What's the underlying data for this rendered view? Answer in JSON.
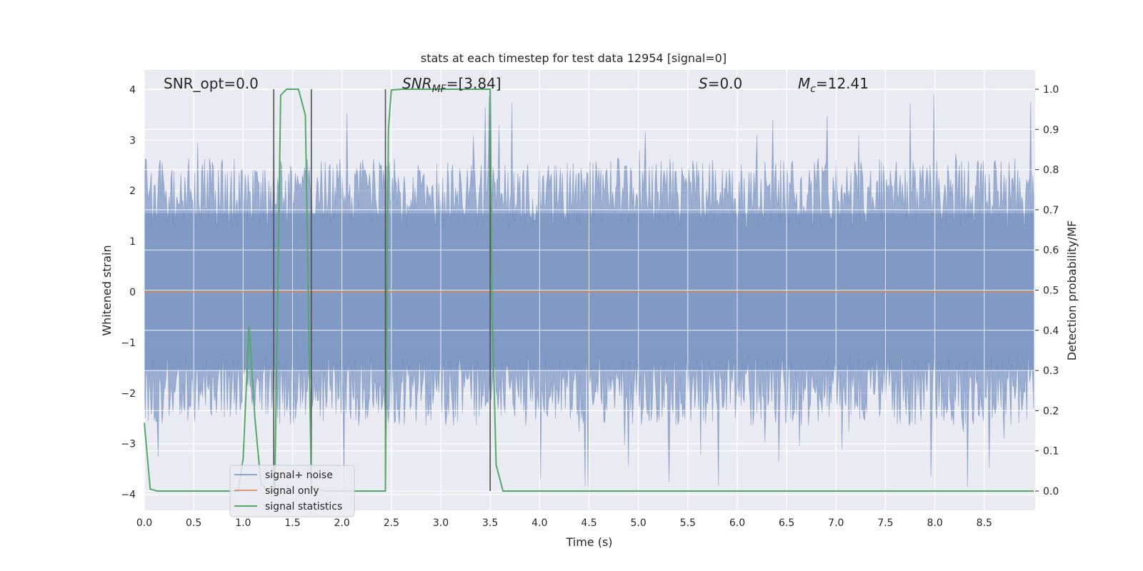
{
  "chart_data": {
    "type": "line",
    "title": "stats at each timestep for test data 12954 [signal=0]",
    "xlabel": "Time (s)",
    "ylabel": "Whitened strain",
    "y2label": "Detection probability/MF",
    "xlim": [
      0,
      9.0
    ],
    "ylim": [
      -4.3,
      4.4
    ],
    "y2lim": [
      -0.05,
      1.05
    ],
    "xticks": [
      "0.0",
      "0.5",
      "1.0",
      "1.5",
      "2.0",
      "2.5",
      "3.0",
      "3.5",
      "4.0",
      "4.5",
      "5.0",
      "5.5",
      "6.0",
      "6.5",
      "7.0",
      "7.5",
      "8.0",
      "8.5"
    ],
    "yticks": [
      "4",
      "3",
      "2",
      "1",
      "0",
      "−1",
      "−2",
      "−3",
      "−4"
    ],
    "y2ticks": [
      "1.0",
      "0.9",
      "0.8",
      "0.7",
      "0.6",
      "0.5",
      "0.4",
      "0.3",
      "0.2",
      "0.1",
      "0.0"
    ],
    "grid": true,
    "legend_position": "lower-left",
    "colors": {
      "background": "#eaeaf2",
      "noise": "#4c72b0",
      "signal_only": "#dd8452",
      "statistics": "#55a868",
      "vlines": "#505050"
    },
    "series": [
      {
        "name": "signal+ noise",
        "axis": "left",
        "note_shape": "dense noise band",
        "approx_envelope": {
          "upper_typical": 2.3,
          "lower_typical": -2.3,
          "max": 4.0,
          "min": -3.9
        }
      },
      {
        "name": "signal only",
        "axis": "left",
        "x": [
          0.0,
          9.0
        ],
        "y": [
          0.0,
          0.0
        ]
      },
      {
        "name": "signal statistics",
        "axis": "right",
        "x": [
          0.0,
          0.06,
          0.13,
          0.95,
          1.0,
          1.06,
          1.12,
          1.18,
          1.25,
          1.32,
          1.38,
          1.44,
          1.5,
          1.56,
          1.63,
          1.69,
          1.75,
          1.82,
          2.0,
          2.44,
          2.47,
          2.5,
          2.6,
          3.0,
          3.5,
          3.52,
          3.56,
          3.63,
          9.0
        ],
        "y": [
          0.17,
          0.005,
          0.0,
          0.0,
          0.08,
          0.41,
          0.18,
          0.02,
          0.0,
          0.0,
          0.985,
          1.0,
          1.0,
          1.0,
          0.935,
          0.01,
          0.005,
          0.0,
          0.0,
          0.0,
          0.9,
          0.998,
          1.0,
          1.0,
          1.0,
          0.45,
          0.065,
          0.0,
          0.0
        ]
      }
    ],
    "vertical_lines_x": [
      1.31,
      1.69,
      2.44,
      3.5
    ],
    "annotations": [
      {
        "text": "SNR_opt=0.0"
      },
      {
        "text": "SNR_MF=[3.84]"
      },
      {
        "text": "S=0.0"
      },
      {
        "text": "M_c=12.41"
      }
    ]
  }
}
